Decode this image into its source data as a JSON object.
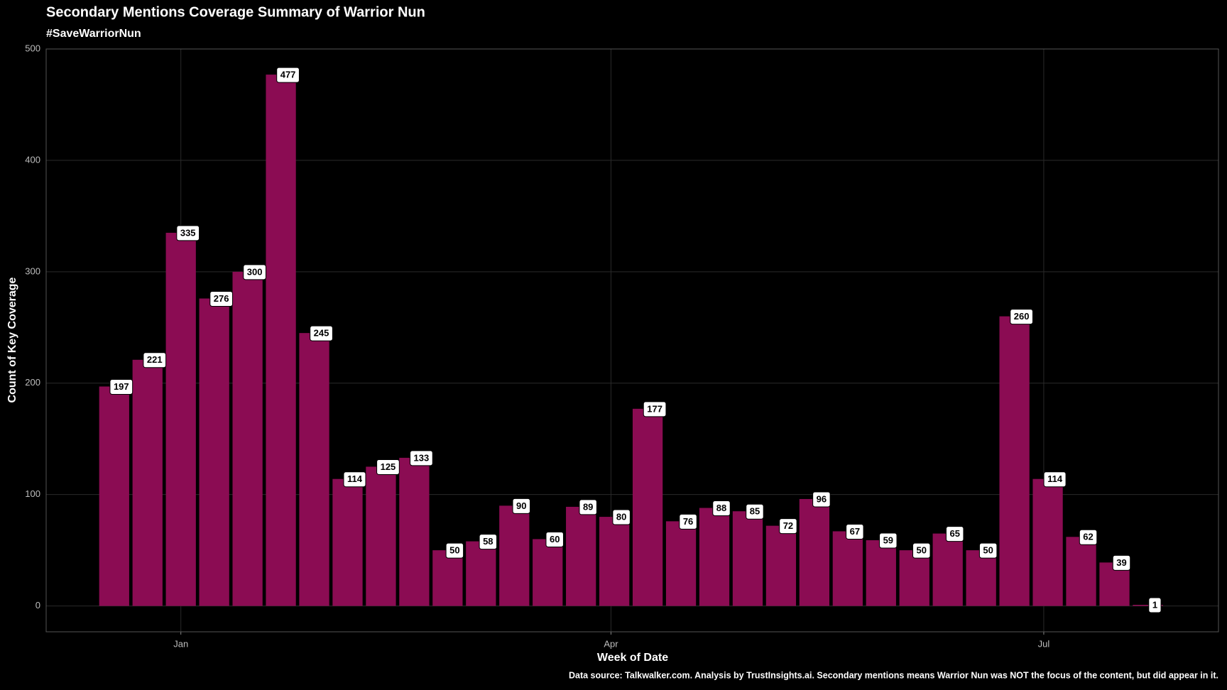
{
  "chart_data": {
    "type": "bar",
    "title": "Secondary Mentions Coverage Summary of Warrior Nun",
    "subtitle": "#SaveWarriorNun",
    "x_label": "Week of Date",
    "y_label": "Count of Key Coverage",
    "caption": "Data source: Talkwalker.com. Analysis by TrustInsights.ai. Secondary mentions means Warrior Nun was NOT the focus of the content, but did appear in it.",
    "categories": [
      null,
      null,
      null,
      null,
      null,
      null,
      null,
      null,
      null,
      null,
      null,
      null,
      null,
      null,
      null,
      null,
      null,
      null,
      null,
      null,
      null,
      null,
      null,
      null,
      null,
      null,
      null,
      null,
      null,
      null,
      null,
      null
    ],
    "values": [
      197,
      221,
      335,
      276,
      300,
      477,
      245,
      114,
      125,
      133,
      50,
      58,
      90,
      60,
      89,
      80,
      177,
      76,
      88,
      85,
      72,
      96,
      67,
      59,
      50,
      65,
      50,
      260,
      114,
      62,
      39,
      1
    ],
    "color": "#8b0c53",
    "xlim": [
      -2.04,
      33.12
    ],
    "xticks": [
      {
        "value": 2,
        "label": "Jan"
      },
      {
        "value": 14.9,
        "label": "Apr"
      },
      {
        "value": 27.88,
        "label": "Jul"
      }
    ],
    "ylim": [
      -23.2,
      500
    ],
    "yticks": [
      0,
      100,
      200,
      300,
      400,
      500
    ],
    "grid": true
  }
}
